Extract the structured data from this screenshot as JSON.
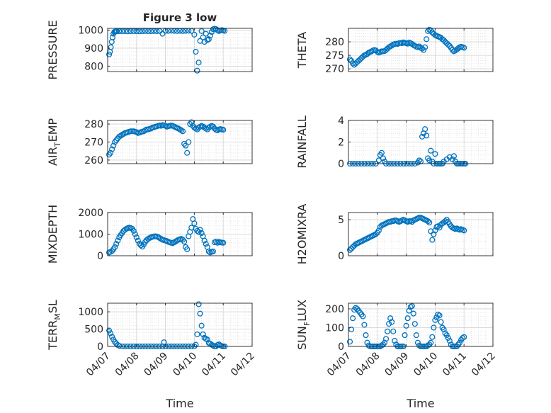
{
  "figure": {
    "title": "Figure 3 low",
    "xlabel": "Time",
    "xticks": [
      "04/07",
      "04/08",
      "04/09",
      "04/10",
      "04/11",
      "04/12"
    ]
  },
  "colors": {
    "marker": "#0072BD",
    "axis": "#262626",
    "grid": "#d2d2d2",
    "minor_grid": "#e6e6e6"
  },
  "chart_data": [
    {
      "type": "scatter",
      "name": "PRESSURE",
      "ylabel": "PRESSURE",
      "ylim": [
        770,
        1010
      ],
      "yticks": [
        800,
        900,
        1000
      ],
      "xlim": [
        0,
        5
      ],
      "grid": true,
      "marker": "circle",
      "x": [
        0.05,
        0.08,
        0.11,
        0.14,
        0.17,
        0.2,
        0.23,
        0.26,
        0.29,
        0.32,
        0.4,
        0.5,
        0.6,
        0.7,
        0.8,
        0.9,
        1.0,
        1.1,
        1.2,
        1.3,
        1.4,
        1.5,
        1.6,
        1.7,
        1.8,
        1.9,
        2.0,
        2.1,
        2.2,
        2.3,
        2.4,
        2.5,
        2.6,
        2.7,
        2.8,
        2.9,
        3.0,
        3.05,
        3.1,
        3.15,
        3.2,
        3.25,
        3.3,
        3.35,
        3.4,
        3.45,
        3.5,
        3.55,
        3.6,
        3.65,
        3.7,
        3.75,
        3.8,
        3.85,
        3.9,
        3.95,
        4.0,
        4.05
      ],
      "y": [
        865,
        880,
        905,
        935,
        960,
        980,
        990,
        992,
        993,
        994,
        994,
        994,
        994,
        993,
        994,
        994,
        994,
        993,
        994,
        995,
        994,
        994,
        995,
        994,
        995,
        980,
        996,
        996,
        997,
        996,
        995,
        996,
        995,
        996,
        997,
        996,
        975,
        880,
        775,
        820,
        940,
        995,
        960,
        935,
        980,
        945,
        950,
        970,
        990,
        1005,
        1008,
        1006,
        1000,
        995,
        998,
        1000,
        998,
        996
      ]
    },
    {
      "type": "scatter",
      "name": "THETA",
      "ylabel": "THETA",
      "ylim": [
        269,
        285
      ],
      "yticks": [
        270,
        275,
        280
      ],
      "xlim": [
        0,
        5
      ],
      "grid": true,
      "marker": "circle",
      "x": [
        0.05,
        0.1,
        0.15,
        0.2,
        0.25,
        0.3,
        0.35,
        0.4,
        0.45,
        0.5,
        0.55,
        0.6,
        0.65,
        0.7,
        0.75,
        0.8,
        0.85,
        0.9,
        0.95,
        1.0,
        1.05,
        1.1,
        1.15,
        1.2,
        1.25,
        1.3,
        1.35,
        1.4,
        1.45,
        1.5,
        1.55,
        1.6,
        1.65,
        1.7,
        1.75,
        1.8,
        1.85,
        1.9,
        1.95,
        2.0,
        2.05,
        2.1,
        2.15,
        2.2,
        2.25,
        2.3,
        2.35,
        2.4,
        2.45,
        2.5,
        2.55,
        2.6,
        2.65,
        2.7,
        2.75,
        2.8,
        2.85,
        2.9,
        2.95,
        3.0,
        3.05,
        3.1,
        3.15,
        3.2,
        3.25,
        3.3,
        3.35,
        3.4,
        3.45,
        3.5,
        3.55,
        3.6,
        3.65,
        3.7,
        3.75,
        3.8,
        3.85,
        3.9,
        3.95,
        4.0
      ],
      "y": [
        273.5,
        273,
        272,
        271.5,
        272,
        272.5,
        273,
        273.5,
        274,
        274.5,
        275,
        275.2,
        275.5,
        276,
        276.2,
        276.5,
        276.8,
        277,
        276.8,
        276.3,
        276,
        276.2,
        276.5,
        276.5,
        276.6,
        277,
        277.5,
        278,
        278.3,
        278.6,
        279,
        279.2,
        279.3,
        279.2,
        279.5,
        279.6,
        279.5,
        279.8,
        279.6,
        279.5,
        279.3,
        279.7,
        279.5,
        279.2,
        278.8,
        278.5,
        278.2,
        278,
        278.3,
        277.8,
        277.5,
        277,
        278,
        281,
        284,
        284.5,
        284.2,
        283.5,
        283,
        282.5,
        282.2,
        282,
        281.8,
        281.5,
        281,
        280.6,
        280,
        279.5,
        279,
        278.5,
        277.8,
        277,
        276.5,
        276.8,
        277.2,
        277.6,
        278,
        278.2,
        278,
        277.8
      ]
    },
    {
      "type": "scatter",
      "name": "AIR_TEMP",
      "ylabel": "AIR_TEMP",
      "ylim": [
        258,
        282
      ],
      "yticks": [
        260,
        270,
        280
      ],
      "xlim": [
        0,
        5
      ],
      "grid": true,
      "marker": "circle",
      "x": [
        0.05,
        0.1,
        0.15,
        0.2,
        0.25,
        0.3,
        0.35,
        0.4,
        0.45,
        0.5,
        0.55,
        0.6,
        0.65,
        0.7,
        0.75,
        0.8,
        0.85,
        0.9,
        0.95,
        1.0,
        1.05,
        1.1,
        1.15,
        1.2,
        1.25,
        1.3,
        1.35,
        1.4,
        1.45,
        1.5,
        1.55,
        1.6,
        1.65,
        1.7,
        1.75,
        1.8,
        1.85,
        1.9,
        1.95,
        2.0,
        2.05,
        2.1,
        2.15,
        2.2,
        2.25,
        2.3,
        2.35,
        2.4,
        2.45,
        2.5,
        2.55,
        2.6,
        2.65,
        2.7,
        2.75,
        2.8,
        2.85,
        2.9,
        2.95,
        3.0,
        3.05,
        3.1,
        3.15,
        3.2,
        3.25,
        3.3,
        3.35,
        3.4,
        3.45,
        3.5,
        3.55,
        3.6,
        3.65,
        3.7,
        3.75,
        3.8,
        3.85,
        3.9,
        3.95,
        4.0
      ],
      "y": [
        263,
        264,
        266,
        268,
        270,
        271,
        272,
        273,
        273.5,
        274,
        274.5,
        275,
        275.2,
        275.5,
        275.8,
        276,
        276,
        276,
        275.8,
        275.5,
        275,
        275.2,
        275.5,
        275.8,
        276,
        276.5,
        277,
        277,
        277.3,
        277.5,
        278,
        278.2,
        278.5,
        278.7,
        279,
        279.2,
        279,
        279.4,
        279.3,
        279,
        278.5,
        278.8,
        279,
        279.2,
        279,
        278.6,
        278.2,
        277.8,
        277.5,
        277,
        276.5,
        276,
        269,
        268,
        264,
        270,
        280,
        281,
        279,
        278,
        277.5,
        277,
        278,
        278.5,
        279,
        278.6,
        278,
        277.5,
        277,
        278,
        278.5,
        279,
        278.6,
        277.5,
        276.8,
        276.5,
        277,
        277.2,
        277,
        276.8
      ]
    },
    {
      "type": "scatter",
      "name": "RAINFALL",
      "ylabel": "RAINFALL",
      "ylim": [
        0,
        4
      ],
      "yticks": [
        0,
        2,
        4
      ],
      "xlim": [
        0,
        5
      ],
      "grid": true,
      "marker": "circle",
      "x": [
        0.05,
        0.15,
        0.25,
        0.35,
        0.45,
        0.55,
        0.65,
        0.75,
        0.85,
        0.95,
        1.05,
        1.1,
        1.15,
        1.2,
        1.25,
        1.3,
        1.4,
        1.5,
        1.6,
        1.7,
        1.8,
        1.9,
        2.0,
        2.1,
        2.2,
        2.3,
        2.4,
        2.45,
        2.5,
        2.55,
        2.6,
        2.65,
        2.7,
        2.75,
        2.8,
        2.85,
        2.9,
        2.95,
        3.0,
        3.05,
        3.1,
        3.15,
        3.2,
        3.25,
        3.3,
        3.4,
        3.5,
        3.6,
        3.65,
        3.7,
        3.75,
        3.8,
        3.85,
        3.9,
        3.95,
        4.0,
        4.05
      ],
      "y": [
        0,
        0,
        0,
        0,
        0,
        0,
        0,
        0,
        0,
        0,
        0.3,
        0.8,
        1.0,
        0.5,
        0.2,
        0,
        0,
        0,
        0,
        0,
        0,
        0,
        0,
        0,
        0,
        0,
        0.1,
        0.3,
        0.2,
        2.5,
        2.8,
        3.2,
        2.6,
        0.5,
        0.3,
        1.2,
        0.2,
        0,
        0.9,
        0,
        0,
        0,
        0,
        0,
        0.2,
        0.4,
        0.6,
        0.4,
        0.7,
        0.2,
        0,
        0,
        0,
        0,
        0,
        0,
        0
      ]
    },
    {
      "type": "scatter",
      "name": "MIXDEPTH",
      "ylabel": "MIXDEPTH",
      "ylim": [
        0,
        2000
      ],
      "yticks": [
        0,
        1000,
        2000
      ],
      "xlim": [
        0,
        5
      ],
      "grid": true,
      "marker": "circle",
      "x": [
        0.05,
        0.1,
        0.15,
        0.2,
        0.25,
        0.3,
        0.35,
        0.4,
        0.45,
        0.5,
        0.55,
        0.6,
        0.65,
        0.7,
        0.75,
        0.8,
        0.85,
        0.9,
        0.95,
        1.0,
        1.05,
        1.1,
        1.15,
        1.2,
        1.25,
        1.3,
        1.35,
        1.4,
        1.45,
        1.5,
        1.55,
        1.6,
        1.65,
        1.7,
        1.75,
        1.8,
        1.85,
        1.9,
        1.95,
        2.0,
        2.05,
        2.1,
        2.15,
        2.2,
        2.25,
        2.3,
        2.35,
        2.4,
        2.45,
        2.5,
        2.55,
        2.6,
        2.65,
        2.7,
        2.75,
        2.8,
        2.85,
        2.9,
        2.95,
        3.0,
        3.05,
        3.1,
        3.15,
        3.2,
        3.25,
        3.3,
        3.35,
        3.4,
        3.45,
        3.5,
        3.55,
        3.6,
        3.65,
        3.7,
        3.75,
        3.8,
        3.85,
        3.9,
        3.95,
        4.0
      ],
      "y": [
        150,
        180,
        220,
        300,
        400,
        550,
        700,
        850,
        950,
        1050,
        1150,
        1200,
        1250,
        1280,
        1300,
        1280,
        1250,
        1150,
        1000,
        850,
        700,
        560,
        480,
        420,
        520,
        640,
        720,
        780,
        820,
        850,
        880,
        890,
        900,
        890,
        860,
        820,
        780,
        740,
        720,
        700,
        680,
        640,
        620,
        600,
        580,
        620,
        660,
        700,
        740,
        760,
        780,
        740,
        650,
        400,
        300,
        900,
        1100,
        1300,
        1700,
        1500,
        1250,
        1150,
        1100,
        1200,
        1050,
        900,
        700,
        550,
        400,
        200,
        150,
        180,
        200,
        620,
        650,
        600,
        640,
        620,
        610,
        600
      ]
    },
    {
      "type": "scatter",
      "name": "H2OMIXRA",
      "ylabel": "H2OMIXRA",
      "ylim": [
        0,
        6
      ],
      "yticks": [
        0,
        5
      ],
      "xlim": [
        0,
        5
      ],
      "grid": true,
      "marker": "circle",
      "x": [
        0.05,
        0.1,
        0.15,
        0.2,
        0.25,
        0.3,
        0.35,
        0.4,
        0.45,
        0.5,
        0.55,
        0.6,
        0.65,
        0.7,
        0.75,
        0.8,
        0.85,
        0.9,
        0.95,
        1.0,
        1.05,
        1.1,
        1.15,
        1.2,
        1.25,
        1.3,
        1.35,
        1.4,
        1.45,
        1.5,
        1.55,
        1.6,
        1.65,
        1.7,
        1.75,
        1.8,
        1.85,
        1.9,
        1.95,
        2.0,
        2.05,
        2.1,
        2.15,
        2.2,
        2.25,
        2.3,
        2.35,
        2.4,
        2.45,
        2.5,
        2.55,
        2.6,
        2.65,
        2.7,
        2.75,
        2.8,
        2.85,
        2.9,
        2.95,
        3.0,
        3.05,
        3.1,
        3.15,
        3.2,
        3.25,
        3.3,
        3.35,
        3.4,
        3.45,
        3.5,
        3.55,
        3.6,
        3.65,
        3.7,
        3.75,
        3.8,
        3.85,
        3.9,
        3.95,
        4.0
      ],
      "y": [
        0.8,
        1.0,
        1.2,
        1.4,
        1.6,
        1.7,
        1.8,
        1.9,
        2.0,
        2.1,
        2.2,
        2.3,
        2.4,
        2.5,
        2.6,
        2.7,
        2.8,
        2.9,
        3.0,
        3.2,
        3.5,
        4.0,
        4.2,
        4.3,
        4.4,
        4.5,
        4.6,
        4.7,
        4.7,
        4.8,
        4.8,
        4.9,
        4.9,
        4.8,
        4.7,
        4.8,
        4.9,
        5.0,
        4.9,
        4.8,
        4.7,
        4.8,
        4.8,
        4.7,
        4.9,
        5.0,
        5.1,
        5.2,
        5.3,
        5.3,
        5.2,
        5.1,
        5.0,
        4.9,
        4.8,
        4.6,
        3.4,
        2.2,
        3.0,
        3.5,
        4.0,
        4.1,
        3.9,
        4.3,
        4.5,
        4.6,
        4.8,
        5.0,
        4.7,
        4.4,
        4.1,
        3.9,
        3.8,
        3.7,
        3.8,
        3.7,
        3.6,
        3.7,
        3.6,
        3.5
      ]
    },
    {
      "type": "scatter",
      "name": "TERR_MSL",
      "ylabel": "TERR_MSL",
      "ylim": [
        0,
        1250
      ],
      "yticks": [
        0,
        500,
        1000
      ],
      "xlim": [
        0,
        5
      ],
      "grid": true,
      "marker": "circle",
      "x": [
        0.05,
        0.1,
        0.15,
        0.2,
        0.25,
        0.3,
        0.35,
        0.4,
        0.5,
        0.6,
        0.7,
        0.8,
        0.9,
        1.0,
        1.1,
        1.2,
        1.3,
        1.4,
        1.5,
        1.6,
        1.7,
        1.8,
        1.9,
        1.95,
        2.0,
        2.1,
        2.2,
        2.3,
        2.4,
        2.5,
        2.6,
        2.7,
        2.8,
        2.9,
        3.0,
        3.05,
        3.1,
        3.15,
        3.2,
        3.25,
        3.3,
        3.35,
        3.4,
        3.45,
        3.5,
        3.55,
        3.6,
        3.65,
        3.7,
        3.75,
        3.8,
        3.85,
        3.9,
        3.95,
        4.0,
        4.05
      ],
      "y": [
        460,
        380,
        280,
        200,
        130,
        80,
        40,
        15,
        0,
        0,
        0,
        0,
        0,
        0,
        0,
        0,
        0,
        0,
        0,
        0,
        0,
        0,
        0,
        120,
        0,
        0,
        0,
        0,
        0,
        0,
        0,
        0,
        0,
        0,
        0,
        50,
        350,
        1220,
        950,
        600,
        350,
        250,
        220,
        200,
        100,
        80,
        50,
        20,
        0,
        0,
        40,
        60,
        30,
        10,
        0,
        0
      ]
    },
    {
      "type": "scatter",
      "name": "SUN_FLUX",
      "ylabel": "SUN_FLUX",
      "ylim": [
        0,
        230
      ],
      "yticks": [
        0,
        100,
        200
      ],
      "xlim": [
        0,
        5
      ],
      "grid": true,
      "marker": "circle",
      "x": [
        0.05,
        0.1,
        0.15,
        0.2,
        0.25,
        0.3,
        0.35,
        0.4,
        0.45,
        0.5,
        0.55,
        0.6,
        0.65,
        0.7,
        0.75,
        0.8,
        0.85,
        0.9,
        0.95,
        1.0,
        1.05,
        1.1,
        1.15,
        1.2,
        1.25,
        1.3,
        1.35,
        1.4,
        1.45,
        1.5,
        1.55,
        1.6,
        1.65,
        1.7,
        1.75,
        1.8,
        1.85,
        1.9,
        1.95,
        2.0,
        2.05,
        2.1,
        2.15,
        2.2,
        2.25,
        2.3,
        2.35,
        2.4,
        2.45,
        2.5,
        2.55,
        2.6,
        2.65,
        2.7,
        2.75,
        2.8,
        2.85,
        2.9,
        2.95,
        3.0,
        3.05,
        3.1,
        3.15,
        3.2,
        3.25,
        3.3,
        3.35,
        3.4,
        3.45,
        3.5,
        3.55,
        3.6,
        3.65,
        3.7,
        3.75,
        3.8,
        3.85,
        3.9,
        3.95,
        4.0
      ],
      "y": [
        25,
        90,
        150,
        195,
        205,
        200,
        190,
        180,
        170,
        160,
        115,
        60,
        20,
        5,
        0,
        0,
        0,
        0,
        0,
        0,
        0,
        0,
        5,
        10,
        20,
        40,
        80,
        120,
        150,
        130,
        80,
        30,
        10,
        0,
        0,
        0,
        0,
        0,
        60,
        110,
        150,
        190,
        210,
        215,
        175,
        120,
        60,
        20,
        5,
        0,
        0,
        0,
        0,
        0,
        5,
        10,
        20,
        50,
        100,
        140,
        155,
        170,
        165,
        130,
        100,
        90,
        70,
        60,
        45,
        30,
        10,
        0,
        0,
        0,
        0,
        10,
        20,
        35,
        45,
        50
      ]
    }
  ]
}
